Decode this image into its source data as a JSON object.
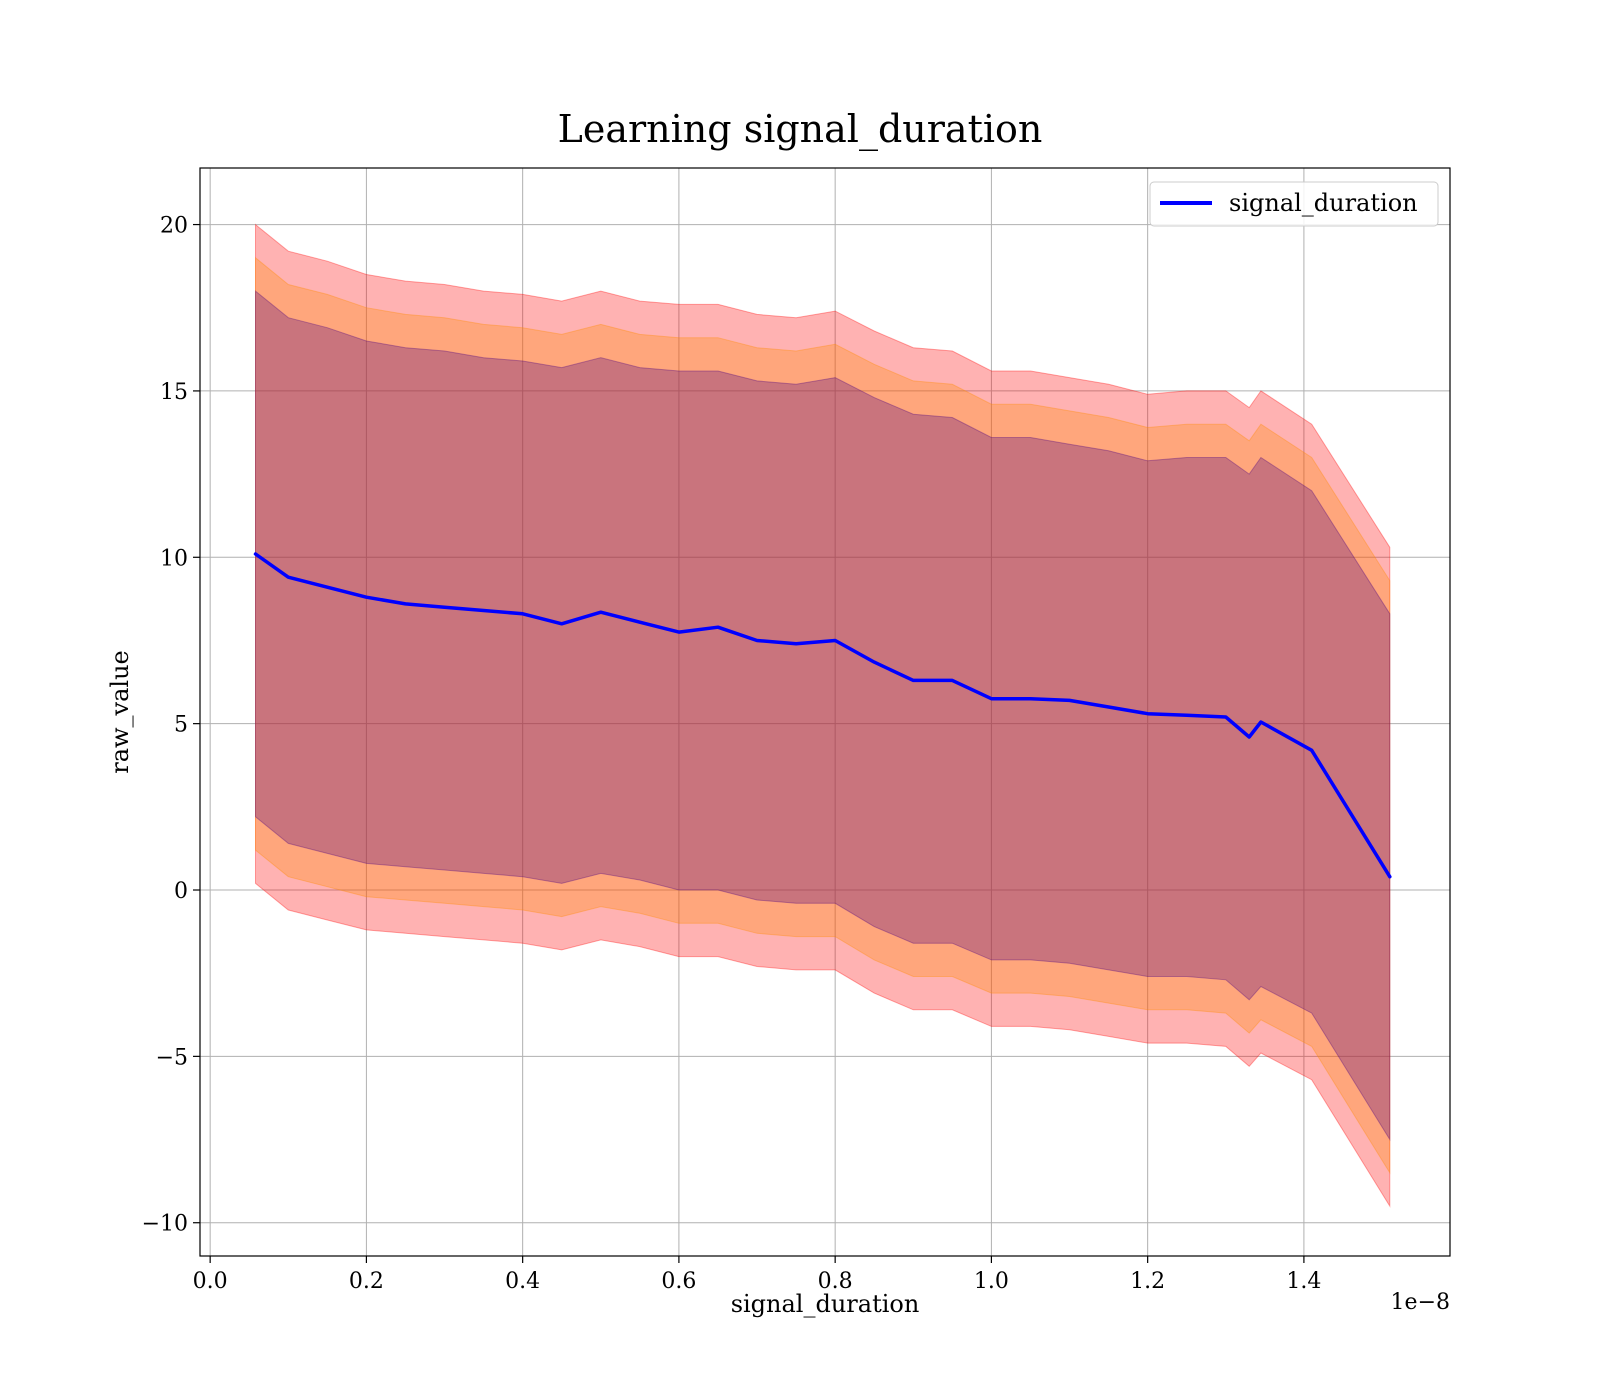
{
  "chart_data": {
    "type": "area",
    "title": "Learning signal_duration",
    "xlabel": "signal_duration",
    "ylabel": "raw_value",
    "x_offset_label": "1e−8",
    "xlim": [
      -0.013,
      1.587
    ],
    "ylim": [
      -11,
      21.7
    ],
    "xticks": [
      0.0,
      0.2,
      0.4,
      0.6,
      0.8,
      1.0,
      1.2,
      1.4
    ],
    "xtick_labels": [
      "0.0",
      "0.2",
      "0.4",
      "0.6",
      "0.8",
      "1.0",
      "1.2",
      "1.4"
    ],
    "yticks": [
      -10,
      -5,
      0,
      5,
      10,
      15,
      20
    ],
    "ytick_labels": [
      "−10",
      "−5",
      "0",
      "5",
      "10",
      "15",
      "20"
    ],
    "grid": true,
    "legend": {
      "position": "top-right",
      "entries": [
        "signal_duration"
      ]
    },
    "colors": {
      "line": "#0000ff",
      "band_outer": "#ff0000",
      "band_middle": "#ff8c00",
      "band_inner": "#4b0082"
    },
    "x": [
      0.058,
      0.1,
      0.15,
      0.2,
      0.25,
      0.3,
      0.35,
      0.4,
      0.45,
      0.5,
      0.55,
      0.6,
      0.65,
      0.7,
      0.75,
      0.8,
      0.85,
      0.9,
      0.95,
      1.0,
      1.05,
      1.1,
      1.15,
      1.2,
      1.25,
      1.3,
      1.33,
      1.345,
      1.41,
      1.51
    ],
    "series": [
      {
        "name": "signal_duration",
        "values": [
          10.1,
          9.4,
          9.1,
          8.8,
          8.6,
          8.5,
          8.4,
          8.3,
          8.0,
          8.35,
          8.05,
          7.75,
          7.9,
          7.5,
          7.4,
          7.5,
          6.85,
          6.3,
          6.3,
          5.75,
          5.75,
          5.7,
          5.5,
          5.3,
          5.25,
          5.2,
          4.6,
          5.05,
          4.2,
          0.4
        ]
      }
    ],
    "bands": [
      {
        "upper": [
          20.0,
          19.2,
          18.9,
          18.5,
          18.3,
          18.2,
          18.0,
          17.9,
          17.7,
          18.0,
          17.7,
          17.6,
          17.6,
          17.3,
          17.2,
          17.4,
          16.8,
          16.3,
          16.2,
          15.6,
          15.6,
          15.4,
          15.2,
          14.9,
          15.0,
          15.0,
          14.5,
          15.0,
          14.0,
          10.3
        ],
        "lower": [
          0.2,
          -0.6,
          -0.9,
          -1.2,
          -1.3,
          -1.4,
          -1.5,
          -1.6,
          -1.8,
          -1.5,
          -1.7,
          -2.0,
          -2.0,
          -2.3,
          -2.4,
          -2.4,
          -3.1,
          -3.6,
          -3.6,
          -4.1,
          -4.1,
          -4.2,
          -4.4,
          -4.6,
          -4.6,
          -4.7,
          -5.3,
          -4.9,
          -5.7,
          -9.5
        ]
      },
      {
        "upper": [
          19.0,
          18.2,
          17.9,
          17.5,
          17.3,
          17.2,
          17.0,
          16.9,
          16.7,
          17.0,
          16.7,
          16.6,
          16.6,
          16.3,
          16.2,
          16.4,
          15.8,
          15.3,
          15.2,
          14.6,
          14.6,
          14.4,
          14.2,
          13.9,
          14.0,
          14.0,
          13.5,
          14.0,
          13.0,
          9.3
        ],
        "lower": [
          1.2,
          0.4,
          0.1,
          -0.2,
          -0.3,
          -0.4,
          -0.5,
          -0.6,
          -0.8,
          -0.5,
          -0.7,
          -1.0,
          -1.0,
          -1.3,
          -1.4,
          -1.4,
          -2.1,
          -2.6,
          -2.6,
          -3.1,
          -3.1,
          -3.2,
          -3.4,
          -3.6,
          -3.6,
          -3.7,
          -4.3,
          -3.9,
          -4.7,
          -8.5
        ]
      },
      {
        "upper": [
          18.0,
          17.2,
          16.9,
          16.5,
          16.3,
          16.2,
          16.0,
          15.9,
          15.7,
          16.0,
          15.7,
          15.6,
          15.6,
          15.3,
          15.2,
          15.4,
          14.8,
          14.3,
          14.2,
          13.6,
          13.6,
          13.4,
          13.2,
          12.9,
          13.0,
          13.0,
          12.5,
          13.0,
          12.0,
          8.3
        ],
        "lower": [
          2.2,
          1.4,
          1.1,
          0.8,
          0.7,
          0.6,
          0.5,
          0.4,
          0.2,
          0.5,
          0.3,
          0.0,
          0.0,
          -0.3,
          -0.4,
          -0.4,
          -1.1,
          -1.6,
          -1.6,
          -2.1,
          -2.1,
          -2.2,
          -2.4,
          -2.6,
          -2.6,
          -2.7,
          -3.3,
          -2.9,
          -3.7,
          -7.5
        ]
      }
    ]
  }
}
